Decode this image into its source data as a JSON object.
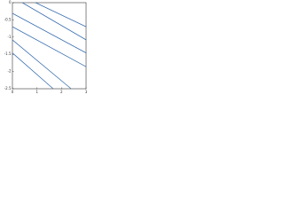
{
  "chart_data": {
    "type": "line",
    "xlim": [
      0,
      3
    ],
    "ylim": [
      -2.5,
      0
    ],
    "xticks": [
      0,
      1,
      2,
      3
    ],
    "yticks": [
      0,
      -0.5,
      -1,
      -1.5,
      -2,
      -2.5
    ],
    "grid": false,
    "series": [
      {
        "color": "#3a6fb0",
        "x": [
          0.94,
          3
        ],
        "values": [
          0,
          -0.7
        ]
      },
      {
        "color": "#3a6fb0",
        "x": [
          0.4,
          3
        ],
        "values": [
          0,
          -1.08
        ]
      },
      {
        "color": "#3a6fb0",
        "x": [
          0,
          3
        ],
        "values": [
          -0.31,
          -1.46
        ]
      },
      {
        "color": "#3a6fb0",
        "x": [
          0,
          3
        ],
        "values": [
          -0.7,
          -1.86
        ]
      },
      {
        "color": "#3a6fb0",
        "x": [
          0,
          2.39
        ],
        "values": [
          -1.08,
          -2.5
        ]
      },
      {
        "color": "#3a6fb0",
        "x": [
          0,
          1.66
        ],
        "values": [
          -1.46,
          -2.5
        ]
      }
    ]
  }
}
